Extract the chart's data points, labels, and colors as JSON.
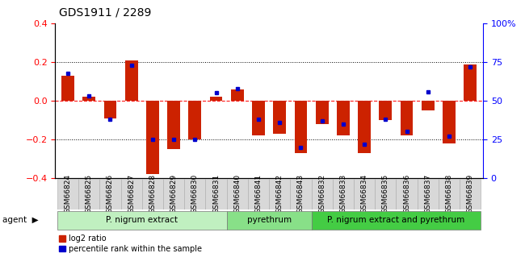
{
  "title": "GDS1911 / 2289",
  "samples": [
    "GSM66824",
    "GSM66825",
    "GSM66826",
    "GSM66827",
    "GSM66828",
    "GSM66829",
    "GSM66830",
    "GSM66831",
    "GSM66840",
    "GSM66841",
    "GSM66842",
    "GSM66843",
    "GSM66832",
    "GSM66833",
    "GSM66834",
    "GSM66835",
    "GSM66836",
    "GSM66837",
    "GSM66838",
    "GSM66839"
  ],
  "log2_ratio": [
    0.13,
    0.02,
    -0.09,
    0.21,
    -0.38,
    -0.25,
    -0.2,
    0.02,
    0.06,
    -0.18,
    -0.17,
    -0.27,
    -0.12,
    -0.18,
    -0.27,
    -0.1,
    -0.18,
    -0.05,
    -0.22,
    0.19
  ],
  "pct_rank": [
    68,
    53,
    38,
    73,
    25,
    25,
    25,
    55,
    58,
    38,
    36,
    20,
    37,
    35,
    22,
    38,
    30,
    56,
    27,
    72
  ],
  "groups": [
    {
      "label": "P. nigrum extract",
      "start": 0,
      "end": 8,
      "color": "#c0f0c0"
    },
    {
      "label": "pyrethrum",
      "start": 8,
      "end": 12,
      "color": "#88e088"
    },
    {
      "label": "P. nigrum extract and pyrethrum",
      "start": 12,
      "end": 20,
      "color": "#44cc44"
    }
  ],
  "bar_color": "#cc2200",
  "dot_color": "#0000cc",
  "ylim_left": [
    -0.4,
    0.4
  ],
  "ylim_right": [
    0,
    100
  ],
  "yticks_left": [
    -0.4,
    -0.2,
    0.0,
    0.2,
    0.4
  ],
  "yticks_right": [
    0,
    25,
    50,
    75,
    100
  ],
  "background_color": "#ffffff",
  "tick_fontsize": 7,
  "group_fontsize": 7.5,
  "legend_fontsize": 7,
  "title_fontsize": 10,
  "xtick_bg_color": "#d8d8d8",
  "xtick_border_color": "#aaaaaa"
}
